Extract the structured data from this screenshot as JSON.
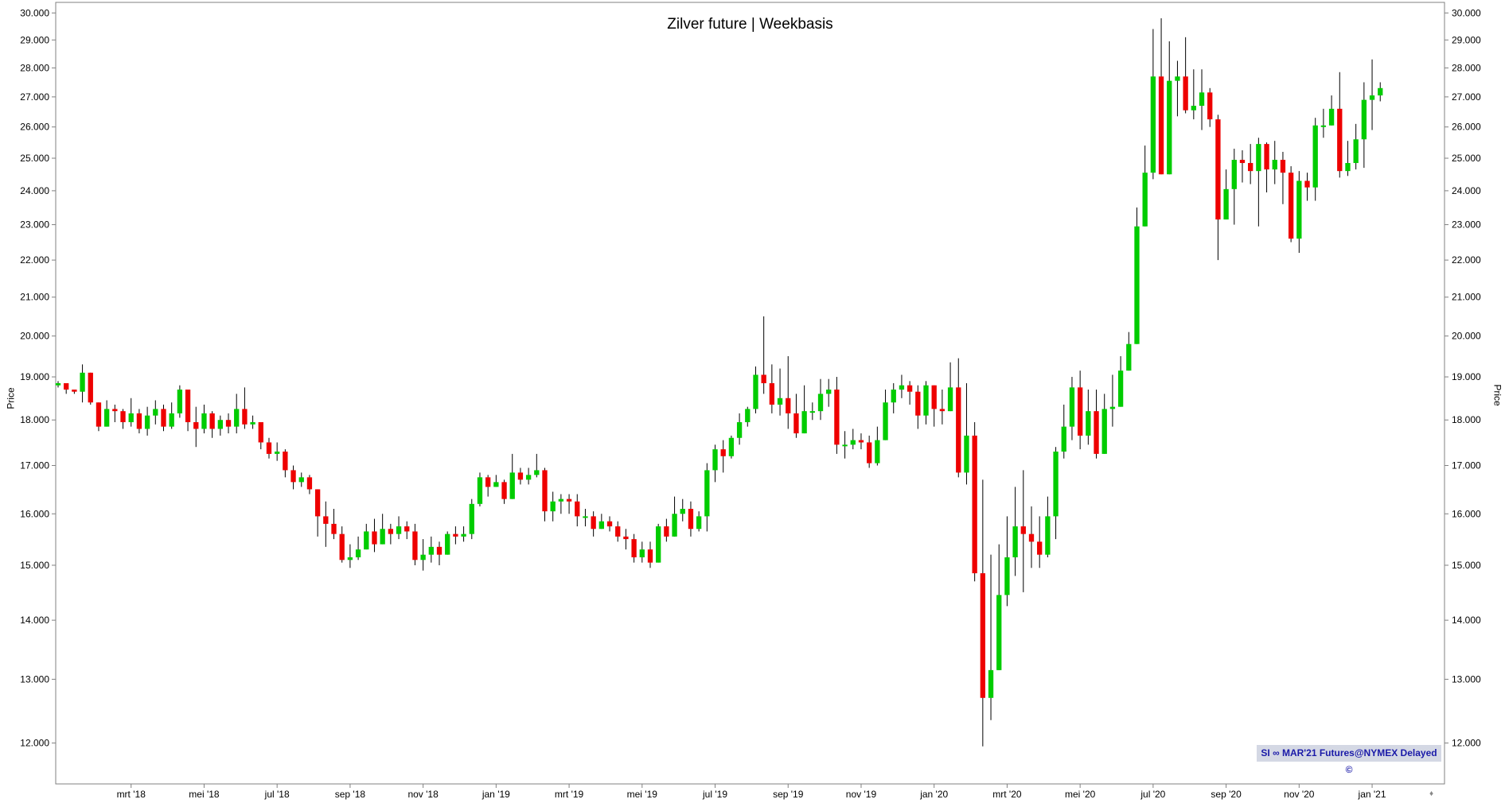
{
  "chart_data": {
    "type": "candlestick",
    "title": "Zilver future | Weekbasis",
    "ylabel": "Price",
    "ylim": [
      11400,
      30400
    ],
    "y_scale": "log",
    "y_ticks": [
      {
        "value": 12000,
        "label": "12.000"
      },
      {
        "value": 13000,
        "label": "13.000"
      },
      {
        "value": 14000,
        "label": "14.000"
      },
      {
        "value": 15000,
        "label": "15.000"
      },
      {
        "value": 16000,
        "label": "16.000"
      },
      {
        "value": 17000,
        "label": "17.000"
      },
      {
        "value": 18000,
        "label": "18.000"
      },
      {
        "value": 19000,
        "label": "19.000"
      },
      {
        "value": 20000,
        "label": "20.000"
      },
      {
        "value": 21000,
        "label": "21.000"
      },
      {
        "value": 22000,
        "label": "22.000"
      },
      {
        "value": 23000,
        "label": "23.000"
      },
      {
        "value": 24000,
        "label": "24.000"
      },
      {
        "value": 25000,
        "label": "25.000"
      },
      {
        "value": 26000,
        "label": "26.000"
      },
      {
        "value": 27000,
        "label": "27.000"
      },
      {
        "value": 28000,
        "label": "28.000"
      },
      {
        "value": 29000,
        "label": "29.000"
      },
      {
        "value": 30000,
        "label": "30.000"
      }
    ],
    "x_ticks": [
      {
        "week": 9,
        "label": "mrt '18"
      },
      {
        "week": 18,
        "label": "mei '18"
      },
      {
        "week": 27,
        "label": "jul '18"
      },
      {
        "week": 36,
        "label": "sep '18"
      },
      {
        "week": 45,
        "label": "nov '18"
      },
      {
        "week": 54,
        "label": "jan '19"
      },
      {
        "week": 63,
        "label": "mrt '19"
      },
      {
        "week": 72,
        "label": "mei '19"
      },
      {
        "week": 81,
        "label": "jul '19"
      },
      {
        "week": 90,
        "label": "sep '19"
      },
      {
        "week": 99,
        "label": "nov '19"
      },
      {
        "week": 108,
        "label": "jan '20"
      },
      {
        "week": 117,
        "label": "mrt '20"
      },
      {
        "week": 126,
        "label": "mei '20"
      },
      {
        "week": 135,
        "label": "jul '20"
      },
      {
        "week": 144,
        "label": "sep '20"
      },
      {
        "week": 153,
        "label": "nov '20"
      },
      {
        "week": 162,
        "label": "jan '21"
      }
    ],
    "x_count": 168,
    "colors": {
      "up": "#00cc00",
      "down": "#ee0000",
      "wick": "#000000",
      "axis": "#808080"
    },
    "close": [
      18850,
      18700,
      18650,
      19100,
      18400,
      17850,
      18250,
      18200,
      17950,
      18150,
      17800,
      18100,
      18250,
      17850,
      18150,
      18700,
      17950,
      17800,
      18150,
      17800,
      18000,
      17850,
      18250,
      17900,
      17950,
      17500,
      17250,
      17300,
      16900,
      16650,
      16750,
      16500,
      15950,
      15800,
      15600,
      15100,
      15150,
      15300,
      15650,
      15400,
      15700,
      15600,
      15750,
      15650,
      15100,
      15200,
      15350,
      15200,
      15600,
      15550,
      15600,
      16200,
      16750,
      16550,
      16650,
      16300,
      16850,
      16700,
      16800,
      16900,
      16050,
      16250,
      16300,
      16250,
      15950,
      15950,
      15700,
      15850,
      15750,
      15550,
      15500,
      15150,
      15300,
      15050,
      15750,
      15550,
      16000,
      16100,
      15700,
      15950,
      16900,
      17350,
      17200,
      17600,
      17950,
      18250,
      19050,
      18850,
      18350,
      18500,
      18150,
      17700,
      18200,
      18200,
      18600,
      18700,
      17450,
      17450,
      17550,
      17500,
      17050,
      17550,
      18400,
      18700,
      18800,
      18650,
      18100,
      18800,
      18250,
      18200,
      18750,
      16850,
      17650,
      14850,
      12700,
      13150,
      14450,
      15150,
      15750,
      15600,
      15450,
      15200,
      15950,
      17300,
      17850,
      18750,
      17650,
      18200,
      17250,
      18250,
      18300,
      19150,
      19800,
      22950,
      24550,
      27700,
      24500,
      27550,
      27700,
      26550,
      26700,
      27150,
      26250,
      23150,
      24050,
      24950,
      24850,
      24600,
      25450,
      24650,
      24950,
      24550,
      22600,
      24300,
      24100,
      26050,
      26050,
      26600,
      24600,
      24850,
      25600,
      26900,
      27050,
      27300
    ],
    "open_prev_close": true,
    "open_first": 18800,
    "high": [
      18900,
      18800,
      18700,
      19300,
      19100,
      18400,
      18450,
      18350,
      18250,
      18500,
      18250,
      18300,
      18450,
      18350,
      18400,
      18800,
      18200,
      18300,
      18350,
      18200,
      18100,
      18150,
      18600,
      18750,
      18100,
      17950,
      17600,
      17500,
      17350,
      17000,
      16850,
      16800,
      16500,
      16250,
      16100,
      15750,
      15400,
      15550,
      15800,
      15900,
      16000,
      15800,
      15950,
      15850,
      15800,
      15500,
      15550,
      15450,
      15650,
      15750,
      15750,
      16300,
      16850,
      16800,
      16800,
      16700,
      17250,
      16950,
      16950,
      17250,
      16950,
      16450,
      16400,
      16400,
      16400,
      16100,
      16050,
      16000,
      15950,
      15850,
      15700,
      15600,
      15450,
      15450,
      15800,
      15900,
      16350,
      16300,
      16250,
      16050,
      17050,
      17450,
      17550,
      17650,
      18150,
      18300,
      19250,
      20500,
      19300,
      19200,
      19500,
      18600,
      18800,
      18400,
      18950,
      18950,
      19000,
      17750,
      17800,
      17700,
      17650,
      17850,
      18700,
      18850,
      19050,
      18900,
      18800,
      18900,
      18750,
      18700,
      19350,
      19450,
      18850,
      17950,
      16700,
      15200,
      15400,
      15950,
      16550,
      16900,
      16150,
      15950,
      16350,
      17400,
      18350,
      19000,
      19150,
      18700,
      18700,
      18600,
      19050,
      19500,
      20100,
      23500,
      25400,
      29400,
      29800,
      28950,
      28250,
      29100,
      27950,
      27950,
      27300,
      26400,
      24650,
      25300,
      25250,
      25450,
      25650,
      25500,
      25550,
      25200,
      24750,
      24600,
      24550,
      26300,
      26600,
      27050,
      27850,
      25550,
      26100,
      27500,
      28300,
      27500
    ],
    "low": [
      18750,
      18600,
      18600,
      18400,
      18350,
      17750,
      17950,
      17950,
      17800,
      17850,
      17700,
      17650,
      17900,
      17750,
      17800,
      18050,
      17750,
      17400,
      17700,
      17600,
      17650,
      17700,
      17700,
      17800,
      17800,
      17350,
      17150,
      17100,
      16750,
      16500,
      16550,
      16400,
      15550,
      15350,
      15500,
      15050,
      14950,
      15100,
      15300,
      15250,
      15400,
      15400,
      15500,
      15500,
      15000,
      14900,
      15050,
      15000,
      15300,
      15400,
      15450,
      15500,
      16150,
      16350,
      16550,
      16200,
      16400,
      16600,
      16600,
      16750,
      15850,
      15850,
      16000,
      16000,
      15750,
      15750,
      15550,
      15700,
      15650,
      15450,
      15300,
      15050,
      15050,
      14950,
      15250,
      15450,
      15650,
      15850,
      15550,
      15650,
      15650,
      16650,
      16850,
      17150,
      17450,
      17850,
      18150,
      18600,
      18150,
      18100,
      17800,
      17600,
      17700,
      18000,
      18000,
      18300,
      17250,
      17150,
      17350,
      17350,
      16950,
      17000,
      17550,
      18150,
      18500,
      18350,
      17800,
      17900,
      17850,
      17900,
      18350,
      16750,
      16600,
      14700,
      11950,
      12350,
      13350,
      14250,
      14800,
      14500,
      14950,
      14950,
      15150,
      15500,
      17150,
      17550,
      17350,
      17450,
      17150,
      17700,
      17850,
      18350,
      19500,
      20150,
      23250,
      24350,
      24600,
      26200,
      26350,
      26450,
      26250,
      25900,
      26000,
      22000,
      23150,
      23000,
      24250,
      24200,
      22950,
      23950,
      24200,
      23600,
      22500,
      22200,
      23700,
      23700,
      25650,
      26050,
      24400,
      24450,
      24650,
      24700,
      25900,
      26850
    ]
  },
  "axis_label_left": "Price",
  "axis_label_right": "Price",
  "source_label": "SI ∞ MAR'21 Futures@NYMEX Delayed ©",
  "nav_glyph": "♦"
}
